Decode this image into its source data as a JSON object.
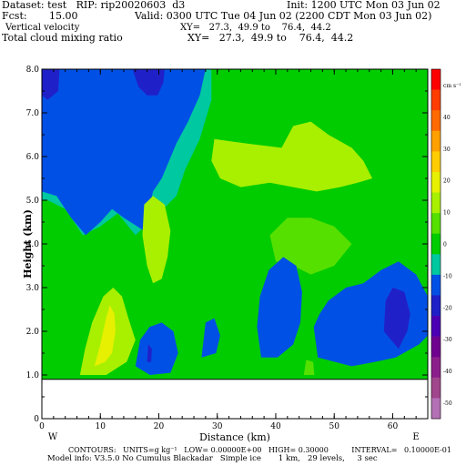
{
  "header": {
    "dataset_line": "Dataset: test   RIP: rip20020603  d3",
    "init_line": "Init: 1200 UTC Mon 03 Jun 02",
    "fcst_line": "Fcst:       15.00",
    "valid_line": "Valid: 0300 UTC Tue 04 Jun 02 (2200 CDT Mon 03 Jun 02)",
    "field1_line": "Vertical velocity",
    "field1_xy": "XY=   27.3,  49.9 to    76.4,  44.2",
    "field2_line": "Total cloud mixing ratio",
    "field2_xy": "XY=   27.3,  49.9 to    76.4,  44.2"
  },
  "footer": {
    "contours_line": "CONTOURS:   UNITS=g kg⁻¹   LOW= 0.00000E+00   HIGH= 0.30000          INTERVAL=   0.10000E-01",
    "model_line": "Model info: V3.5.0 No Cumulus Blackadar   Simple ice       1 km,   29 levels,     3 sec"
  },
  "colors": {
    "plot_bg": "#00cc00",
    "ground": "#ffffff"
  },
  "chart_data": {
    "type": "heatmap",
    "xlabel": "Distance (km)",
    "ylabel": "Height (km)",
    "xlim": [
      0,
      66
    ],
    "ylim": [
      0,
      8
    ],
    "xticks": [
      "0",
      "10",
      "20",
      "30",
      "40",
      "50",
      "60"
    ],
    "xtick_values": [
      0,
      10,
      20,
      30,
      40,
      50,
      60
    ],
    "yticks": [
      "0",
      "1.0",
      "2.0",
      "3.0",
      "4.0",
      "5.0",
      "6.0",
      "7.0",
      "8.0"
    ],
    "ytick_values": [
      0,
      1,
      2,
      3,
      4,
      5,
      6,
      7,
      8
    ],
    "endpoint_labels": {
      "left": "W",
      "right": "E"
    },
    "ground_height_km": 0.9,
    "regions": [
      {
        "name": "upper-left-updraft-outer",
        "level": -5,
        "color": "#00c8a0",
        "polygon": [
          [
            0,
            8
          ],
          [
            29,
            8
          ],
          [
            29,
            7.3
          ],
          [
            27,
            6.4
          ],
          [
            24.5,
            5.7
          ],
          [
            23,
            5.1
          ],
          [
            20,
            4.7
          ],
          [
            16,
            4.2
          ],
          [
            13,
            4.7
          ],
          [
            10,
            4.4
          ],
          [
            7,
            4.2
          ],
          [
            4,
            4.8
          ],
          [
            1,
            5
          ],
          [
            0,
            5
          ]
        ]
      },
      {
        "name": "upper-left-updraft-core",
        "level": -10,
        "color": "#0050e6",
        "polygon": [
          [
            0,
            8
          ],
          [
            28,
            8
          ],
          [
            27,
            7.4
          ],
          [
            25,
            6.8
          ],
          [
            23,
            6.3
          ],
          [
            20.5,
            5.5
          ],
          [
            19,
            5.2
          ],
          [
            17.5,
            4.3
          ],
          [
            14,
            4.6
          ],
          [
            12,
            4.8
          ],
          [
            10,
            4.5
          ],
          [
            7.5,
            4.2
          ],
          [
            5,
            4.6
          ],
          [
            2.5,
            5.1
          ],
          [
            0,
            5.2
          ]
        ]
      },
      {
        "name": "top-band-strong",
        "level": -15,
        "color": "#2020c8",
        "polygon": [
          [
            0,
            8
          ],
          [
            3,
            8
          ],
          [
            2.8,
            7.5
          ],
          [
            1,
            7.3
          ],
          [
            0,
            7.4
          ]
        ]
      },
      {
        "name": "top-cell-strong",
        "level": -15,
        "color": "#2020c8",
        "polygon": [
          [
            15.5,
            8
          ],
          [
            21,
            8
          ],
          [
            20.8,
            7.7
          ],
          [
            19.8,
            7.4
          ],
          [
            18,
            7.4
          ],
          [
            16.5,
            7.6
          ]
        ]
      },
      {
        "name": "mid-right-cloud",
        "level": 5,
        "color": "#a8f000",
        "polygon": [
          [
            29.5,
            6.4
          ],
          [
            35,
            6.3
          ],
          [
            41,
            6.2
          ],
          [
            43,
            6.7
          ],
          [
            46,
            6.8
          ],
          [
            49,
            6.5
          ],
          [
            53,
            6.2
          ],
          [
            55,
            5.9
          ],
          [
            56.5,
            5.5
          ],
          [
            54,
            5.4
          ],
          [
            51,
            5.3
          ],
          [
            47,
            5.2
          ],
          [
            43,
            5.3
          ],
          [
            39,
            5.4
          ],
          [
            34,
            5.3
          ],
          [
            30.5,
            5.5
          ],
          [
            29,
            5.9
          ]
        ]
      },
      {
        "name": "mid-center-cloud-a",
        "level": 5,
        "color": "#a8f000",
        "polygon": [
          [
            17.5,
            4.9
          ],
          [
            19,
            5.1
          ],
          [
            21,
            4.9
          ],
          [
            22,
            4.3
          ],
          [
            21.5,
            3.7
          ],
          [
            20.5,
            3.2
          ],
          [
            19,
            3.1
          ],
          [
            18,
            3.5
          ],
          [
            17.2,
            4.2
          ]
        ]
      },
      {
        "name": "mid-right-light",
        "level": 2,
        "color": "#55e000",
        "polygon": [
          [
            39,
            4.2
          ],
          [
            42,
            4.6
          ],
          [
            46,
            4.6
          ],
          [
            50,
            4.4
          ],
          [
            53,
            4.0
          ],
          [
            50,
            3.5
          ],
          [
            46,
            3.3
          ],
          [
            43,
            3.5
          ],
          [
            40,
            3.6
          ]
        ]
      },
      {
        "name": "low-left-cloud-outer",
        "level": 5,
        "color": "#a8f000",
        "polygon": [
          [
            6.5,
            1.0
          ],
          [
            11,
            1.0
          ],
          [
            14.5,
            1.3
          ],
          [
            16,
            1.8
          ],
          [
            14.8,
            2.3
          ],
          [
            13.7,
            2.8
          ],
          [
            12.2,
            3.0
          ],
          [
            10.5,
            2.8
          ],
          [
            8.6,
            2.2
          ],
          [
            7.4,
            1.6
          ]
        ]
      },
      {
        "name": "low-left-cloud-core",
        "level": 10,
        "color": "#e6f000",
        "polygon": [
          [
            9.0,
            1.2
          ],
          [
            10.8,
            1.3
          ],
          [
            12.0,
            1.5
          ],
          [
            12.6,
            2.0
          ],
          [
            12.4,
            2.4
          ],
          [
            11.6,
            2.6
          ],
          [
            10.8,
            2.2
          ],
          [
            10.0,
            1.7
          ],
          [
            9.4,
            1.4
          ]
        ]
      },
      {
        "name": "low-cell-1",
        "level": -10,
        "color": "#0050e6",
        "polygon": [
          [
            16,
            1.2
          ],
          [
            18.5,
            1.0
          ],
          [
            22,
            1.05
          ],
          [
            23.3,
            1.5
          ],
          [
            22.5,
            2.0
          ],
          [
            20.5,
            2.2
          ],
          [
            18.4,
            2.1
          ],
          [
            16.8,
            1.8
          ]
        ]
      },
      {
        "name": "low-cell-1-core",
        "level": -15,
        "color": "#2020c8",
        "polygon": [
          [
            18.0,
            1.3
          ],
          [
            18.7,
            1.3
          ],
          [
            18.8,
            1.6
          ],
          [
            18.2,
            1.7
          ]
        ]
      },
      {
        "name": "low-cell-2",
        "level": -10,
        "color": "#0050e6",
        "polygon": [
          [
            27.3,
            1.4
          ],
          [
            29.8,
            1.5
          ],
          [
            30.5,
            1.9
          ],
          [
            29.5,
            2.3
          ],
          [
            28,
            2.2
          ]
        ]
      },
      {
        "name": "mid-center-cell",
        "level": -10,
        "color": "#0050e6",
        "polygon": [
          [
            37.5,
            1.4
          ],
          [
            40.3,
            1.4
          ],
          [
            43.0,
            1.7
          ],
          [
            44.2,
            2.2
          ],
          [
            44.5,
            2.9
          ],
          [
            43.5,
            3.5
          ],
          [
            41.3,
            3.7
          ],
          [
            38.8,
            3.4
          ],
          [
            37.3,
            2.8
          ],
          [
            36.8,
            2.1
          ]
        ]
      },
      {
        "name": "right-cell",
        "level": -10,
        "color": "#0050e6",
        "polygon": [
          [
            47.2,
            1.4
          ],
          [
            53,
            1.2
          ],
          [
            57,
            1.3
          ],
          [
            60.5,
            1.4
          ],
          [
            64.5,
            1.7
          ],
          [
            66,
            1.9
          ],
          [
            66,
            2.8
          ],
          [
            64,
            3.3
          ],
          [
            61,
            3.6
          ],
          [
            58,
            3.4
          ],
          [
            55,
            3.1
          ],
          [
            52,
            3.0
          ],
          [
            49,
            2.7
          ],
          [
            47.5,
            2.4
          ],
          [
            46.5,
            2.1
          ]
        ]
      },
      {
        "name": "right-cell-core",
        "level": -15,
        "color": "#2020c8",
        "polygon": [
          [
            58.5,
            2.0
          ],
          [
            61,
            1.6
          ],
          [
            62.5,
            2.0
          ],
          [
            63,
            2.4
          ],
          [
            62,
            2.9
          ],
          [
            60,
            3.0
          ],
          [
            58.8,
            2.7
          ]
        ]
      },
      {
        "name": "tiny-bottom-cell",
        "level": 2,
        "color": "#55e000",
        "polygon": [
          [
            44.8,
            1.0
          ],
          [
            46.6,
            1.0
          ],
          [
            46.4,
            1.3
          ],
          [
            45.2,
            1.35
          ]
        ]
      }
    ]
  },
  "colorbar": {
    "colors": [
      "#ff0000",
      "#ff3d00",
      "#ff6a00",
      "#ffa000",
      "#ffcc00",
      "#e6f000",
      "#a8f000",
      "#55e000",
      "#00cc00",
      "#00c8a0",
      "#0050e6",
      "#2020c8",
      "#4b00b4",
      "#700090",
      "#8c1e8c",
      "#a0468c",
      "#b470b4"
    ],
    "labels": [
      {
        "text": "cm s⁻¹",
        "value": 50
      },
      {
        "text": "40",
        "value": 40
      },
      {
        "text": "30",
        "value": 30
      },
      {
        "text": "20",
        "value": 20
      },
      {
        "text": "10",
        "value": 10
      },
      {
        "text": "0",
        "value": 0
      },
      {
        "text": "-10",
        "value": -10
      },
      {
        "text": "-20",
        "value": -20
      },
      {
        "text": "-30",
        "value": -30
      },
      {
        "text": "-40",
        "value": -40
      },
      {
        "text": "-50",
        "value": -50
      }
    ]
  }
}
